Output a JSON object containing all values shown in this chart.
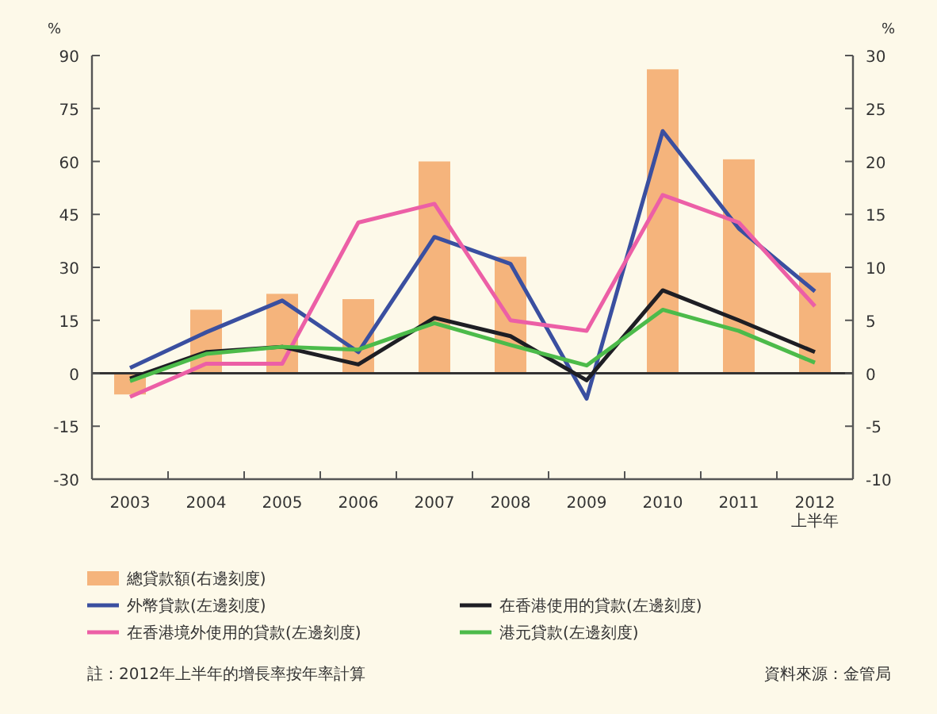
{
  "chart_data": {
    "type": "line",
    "categories": [
      "2003",
      "2004",
      "2005",
      "2006",
      "2007",
      "2008",
      "2009",
      "2010",
      "2011",
      "2012\n上半年"
    ],
    "ylabel": "%",
    "y2label": "%",
    "ylim": [
      -30,
      90
    ],
    "yticks": [
      -30,
      -15,
      0,
      15,
      30,
      45,
      60,
      75,
      90
    ],
    "y2lim": [
      -10,
      30
    ],
    "y2ticks": [
      -10,
      -5,
      0,
      5,
      10,
      15,
      20,
      25,
      30
    ],
    "series": [
      {
        "name": "總貸款額(右邊刻度)",
        "type": "bar",
        "axis": "y2",
        "color": "#f5b47c",
        "values": [
          -2,
          6,
          7.5,
          7,
          20,
          11,
          0,
          28.7,
          20.2,
          9.5
        ]
      },
      {
        "name": "外幣貸款(左邊刻度)",
        "color": "#3a4fa0",
        "values": [
          1.5,
          11.6,
          20.6,
          6,
          38.6,
          31,
          -7.2,
          68.6,
          41,
          23.2
        ]
      },
      {
        "name": "在香港境外使用的貸款(左邊刻度)",
        "color": "#ec5fa6",
        "values": [
          -6.7,
          2.7,
          2.7,
          42.7,
          48,
          15,
          12,
          50.5,
          42.7,
          19
        ]
      },
      {
        "name": "在香港使用的貸款(左邊刻度)",
        "color": "#1e1e24",
        "values": [
          -1.5,
          6,
          7.5,
          2.5,
          15.7,
          10.5,
          -2,
          23.5,
          15,
          6
        ]
      },
      {
        "name": "港元貸款(左邊刻度)",
        "color": "#4cbb4a",
        "values": [
          -2.2,
          5.5,
          7.5,
          6.7,
          14.2,
          8,
          2.2,
          18,
          12,
          3
        ]
      }
    ],
    "legend": "bottom",
    "marker": "none",
    "line_style": "solid",
    "annotations": [
      "註：2012年上半年的增長率按年率計算",
      "資料來源：金管局"
    ]
  }
}
